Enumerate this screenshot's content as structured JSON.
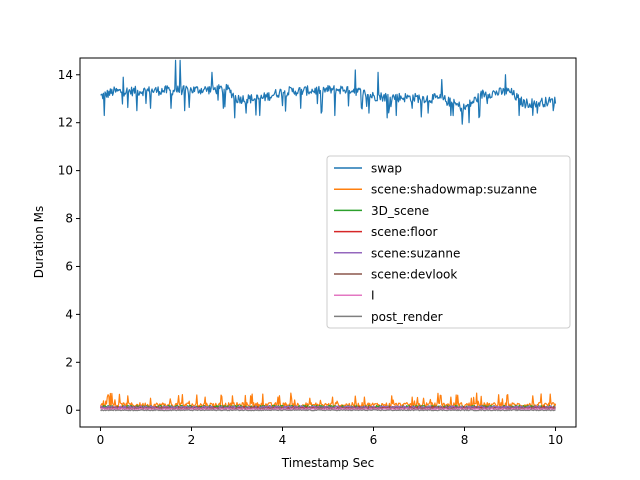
{
  "chart_data": {
    "type": "line",
    "xlabel": "Timestamp Sec",
    "ylabel": "Duration Ms",
    "xlim": [
      -0.45,
      10.45
    ],
    "ylim": [
      -0.7,
      14.7
    ],
    "xticks": [
      0,
      2,
      4,
      6,
      8,
      10
    ],
    "yticks": [
      0,
      2,
      4,
      6,
      8,
      10,
      12,
      14
    ],
    "grid": false,
    "legend_position": "center-right",
    "n_samples": 600,
    "series": [
      {
        "name": "swap",
        "color": "#1f77b4",
        "baseline": 13.2,
        "noise": 0.2,
        "segments": [
          [
            0,
            13.1
          ],
          [
            0.3,
            13.3
          ],
          [
            2.8,
            13.4
          ],
          [
            3.0,
            13.0
          ],
          [
            3.5,
            13.0
          ],
          [
            4.0,
            13.3
          ],
          [
            5.5,
            13.4
          ],
          [
            6.0,
            13.1
          ],
          [
            7.5,
            13.0
          ],
          [
            8.0,
            12.6
          ],
          [
            8.4,
            13.2
          ],
          [
            9.0,
            13.3
          ],
          [
            9.3,
            12.8
          ],
          [
            10,
            12.9
          ]
        ],
        "spikes": [
          [
            0.08,
            12.3
          ],
          [
            0.5,
            13.9
          ],
          [
            0.8,
            12.5
          ],
          [
            1.1,
            12.6
          ],
          [
            1.55,
            12.6
          ],
          [
            1.65,
            14.6
          ],
          [
            1.75,
            14.6
          ],
          [
            1.85,
            12.5
          ],
          [
            2.45,
            14.1
          ],
          [
            2.7,
            12.6
          ],
          [
            2.95,
            12.2
          ],
          [
            3.2,
            12.4
          ],
          [
            3.5,
            12.3
          ],
          [
            4.0,
            12.0
          ],
          [
            4.4,
            12.6
          ],
          [
            4.85,
            12.4
          ],
          [
            5.15,
            12.3
          ],
          [
            5.45,
            12.7
          ],
          [
            5.6,
            12.0
          ],
          [
            5.6,
            14.2
          ],
          [
            5.9,
            12.4
          ],
          [
            6.1,
            14.1
          ],
          [
            6.3,
            12.2
          ],
          [
            6.5,
            12.3
          ],
          [
            6.85,
            12.6
          ],
          [
            7.2,
            12.4
          ],
          [
            7.5,
            13.8
          ],
          [
            7.7,
            12.3
          ],
          [
            7.95,
            11.9
          ],
          [
            8.1,
            12.0
          ],
          [
            8.5,
            12.8
          ],
          [
            8.9,
            14.0
          ],
          [
            9.2,
            12.3
          ],
          [
            9.6,
            12.4
          ],
          [
            9.95,
            12.5
          ]
        ]
      },
      {
        "name": "scene:shadowmap:suzanne",
        "color": "#ff7f0e",
        "baseline": 0.22,
        "noise": 0.1,
        "spikes": [
          [
            0.15,
            0.55
          ],
          [
            0.6,
            0.6
          ],
          [
            1.1,
            0.5
          ],
          [
            1.8,
            0.65
          ],
          [
            2.3,
            0.55
          ],
          [
            2.9,
            0.6
          ],
          [
            3.3,
            0.6
          ],
          [
            3.9,
            0.55
          ],
          [
            4.6,
            0.5
          ],
          [
            5.2,
            0.6
          ],
          [
            5.8,
            0.55
          ],
          [
            6.4,
            0.6
          ],
          [
            7.1,
            0.5
          ],
          [
            7.7,
            0.55
          ],
          [
            8.3,
            0.6
          ],
          [
            8.95,
            0.65
          ],
          [
            9.5,
            0.6
          ]
        ]
      },
      {
        "name": "3D_scene",
        "color": "#2ca02c",
        "baseline": 0.15,
        "noise": 0.05,
        "spikes": []
      },
      {
        "name": "scene:floor",
        "color": "#d62728",
        "baseline": 0.12,
        "noise": 0.03,
        "spikes": []
      },
      {
        "name": "scene:suzanne",
        "color": "#9467bd",
        "baseline": 0.12,
        "noise": 0.06,
        "spikes": []
      },
      {
        "name": "scene:devlook",
        "color": "#8c564b",
        "baseline": 0.08,
        "noise": 0.02,
        "spikes": []
      },
      {
        "name": "I",
        "color": "#e377c2",
        "baseline": 0.05,
        "noise": 0.02,
        "spikes": []
      },
      {
        "name": "post_render",
        "color": "#7f7f7f",
        "baseline": 0.0,
        "noise": 0.02,
        "spikes": []
      }
    ]
  }
}
